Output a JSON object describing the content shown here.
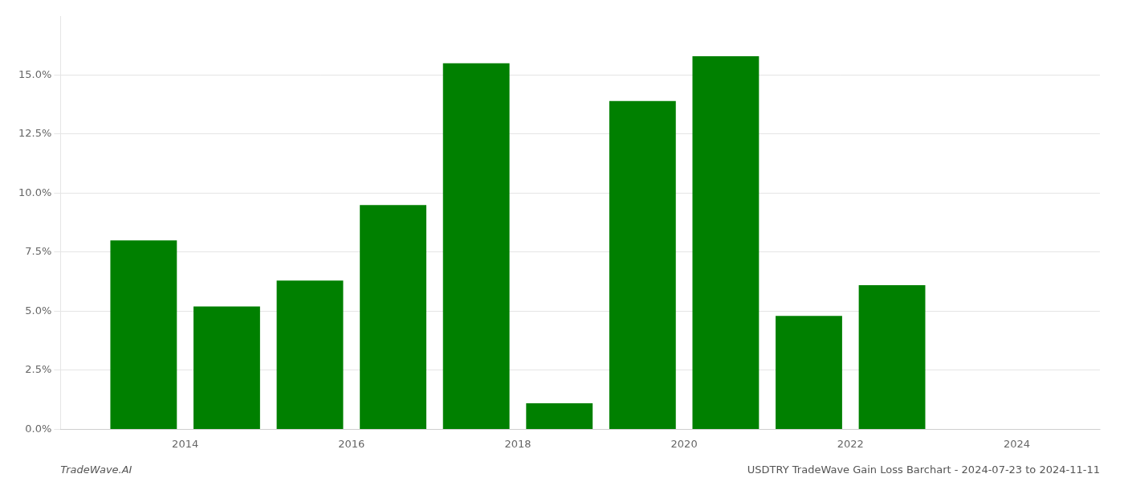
{
  "chart_data": {
    "type": "bar",
    "x": [
      2014,
      2015,
      2016,
      2017,
      2018,
      2019,
      2020,
      2021,
      2022,
      2023
    ],
    "values": [
      0.08,
      0.052,
      0.063,
      0.095,
      0.155,
      0.011,
      0.139,
      0.158,
      0.048,
      0.061
    ],
    "color": "#008000",
    "xlim": [
      2013.0,
      2025.5
    ],
    "xticks": [
      {
        "value": 2014.5,
        "label": "2014"
      },
      {
        "value": 2016.5,
        "label": "2016"
      },
      {
        "value": 2018.5,
        "label": "2018"
      },
      {
        "value": 2020.5,
        "label": "2020"
      },
      {
        "value": 2022.5,
        "label": "2022"
      },
      {
        "value": 2024.5,
        "label": "2024"
      }
    ],
    "ylim": [
      0,
      0.175
    ],
    "yticks": [
      {
        "value": 0.0,
        "label": "0.0%"
      },
      {
        "value": 0.025,
        "label": "2.5%"
      },
      {
        "value": 0.05,
        "label": "5.0%"
      },
      {
        "value": 0.075,
        "label": "7.5%"
      },
      {
        "value": 0.1,
        "label": "10.0%"
      },
      {
        "value": 0.125,
        "label": "12.5%"
      },
      {
        "value": 0.15,
        "label": "15.0%"
      }
    ],
    "grid": true,
    "annotations": [
      "TradeWave.AI",
      "USDTRY TradeWave Gain Loss Barchart - 2024-07-23 to 2024-11-11"
    ]
  }
}
